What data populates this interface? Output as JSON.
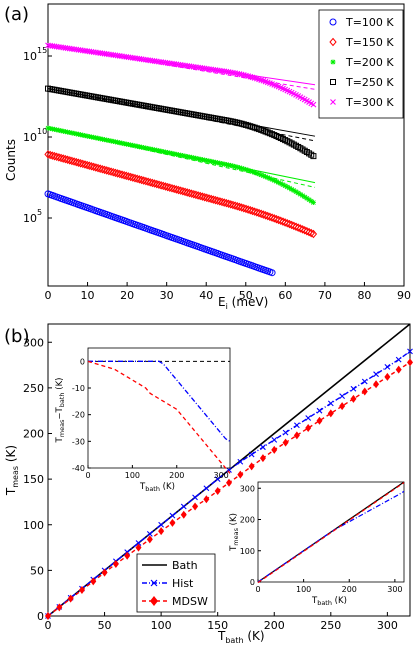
{
  "panel_a": {
    "title": "(a)",
    "xlabel": "E",
    "xlabel_sub": "i",
    "xlabel_unit": " (meV)",
    "ylabel": "Counts",
    "x_ticks": [
      "0",
      "10",
      "20",
      "30",
      "40",
      "50",
      "60",
      "70",
      "80",
      "90"
    ],
    "y_tick_base": [
      "10",
      "10",
      "10"
    ],
    "y_tick_exp": [
      "5",
      "10",
      "15"
    ],
    "legend": [
      "T=100 K",
      "T=150 K",
      "T=200 K",
      "T=250 K",
      "T=300 K"
    ]
  },
  "panel_b": {
    "title": "(b)",
    "xlabel": "T",
    "xlabel_sub": "bath",
    "xlabel_unit": " (K)",
    "ylabel": "T",
    "ylabel_sub": "meas",
    "ylabel_unit": " (K)",
    "x_ticks": [
      "0",
      "50",
      "100",
      "150",
      "200",
      "250",
      "300"
    ],
    "y_ticks": [
      "0",
      "50",
      "100",
      "150",
      "200",
      "250",
      "300"
    ],
    "legend": [
      "Bath",
      "Hist",
      "MDSW"
    ],
    "inset1": {
      "xlabel": "T",
      "xlabel_sub": "bath",
      "xlabel_unit": " (K)",
      "ylabel": "T",
      "ylabel_sub": "meas",
      "ylabel_mid": "−T",
      "ylabel_sub2": "bath",
      "ylabel_unit": " (K)",
      "x_ticks": [
        "0",
        "100",
        "200",
        "300"
      ],
      "y_ticks": [
        "0",
        "-10",
        "-20",
        "-30",
        "-40"
      ]
    },
    "inset2": {
      "xlabel": "T",
      "xlabel_sub": "bath",
      "xlabel_unit": " (K)",
      "ylabel": "T",
      "ylabel_sub": "meas",
      "ylabel_unit": " (K)",
      "x_ticks": [
        "0",
        "100",
        "200",
        "300"
      ],
      "y_ticks": [
        "0",
        "100",
        "200",
        "300"
      ]
    }
  },
  "colors": {
    "T100": "#0000ff",
    "T150": "#ff0000",
    "T200": "#00ee00",
    "T250": "#000000",
    "T300": "#ff00ff",
    "bath": "#000000",
    "hist": "#0000ff",
    "mdsw": "#ff0000"
  },
  "chart_data": [
    {
      "type": "scatter",
      "xlim": [
        0,
        90
      ],
      "ylim_log10": [
        2,
        17
      ],
      "yscale": "log",
      "legend_position": "top-right",
      "series": [
        {
          "name": "T=100 K",
          "marker": "circle",
          "x_max": 57,
          "log10_start": 6.9,
          "slope_per_meV": -0.074
        },
        {
          "name": "T=150 K",
          "marker": "diamond",
          "x_max": 67.5,
          "log10_start": 9.0,
          "slope_per_meV": -0.0575
        },
        {
          "name": "T=200 K",
          "marker": "star",
          "x_max": 67.5,
          "log10_start": 10.4,
          "slope_per_meV": -0.043
        },
        {
          "name": "T=250 K",
          "marker": "square",
          "x_max": 67.5,
          "log10_start": 12.5,
          "slope_per_meV": -0.0375
        },
        {
          "name": "T=300 K",
          "marker": "x",
          "x_max": 67.5,
          "log10_start": 14.8,
          "slope_per_meV": -0.031
        }
      ]
    },
    {
      "type": "line",
      "xlim": [
        0,
        320
      ],
      "ylim": [
        0,
        320
      ],
      "legend_position": "bottom-left",
      "series": [
        {
          "name": "Bath",
          "x": [
            0,
            320
          ],
          "y": [
            0,
            320
          ]
        },
        {
          "name": "Hist",
          "x": [
            0,
            10,
            20,
            30,
            40,
            50,
            60,
            70,
            80,
            90,
            100,
            110,
            120,
            130,
            140,
            150,
            160,
            170,
            180,
            190,
            200,
            210,
            220,
            230,
            240,
            250,
            260,
            270,
            280,
            290,
            300,
            310,
            320
          ],
          "y": [
            0,
            10,
            20,
            30,
            40,
            50,
            60,
            70,
            80,
            90,
            100,
            110,
            120,
            130,
            140,
            150,
            160,
            169,
            177,
            185,
            193,
            201,
            209,
            217,
            225,
            233,
            241,
            249,
            257,
            265,
            273,
            281,
            290
          ]
        },
        {
          "name": "MDSW",
          "x": [
            0,
            10,
            20,
            30,
            40,
            50,
            60,
            70,
            80,
            90,
            100,
            110,
            120,
            130,
            140,
            150,
            160,
            170,
            180,
            190,
            200,
            210,
            220,
            230,
            240,
            250,
            260,
            270,
            280,
            290,
            300,
            310,
            320
          ],
          "y": [
            0,
            9.5,
            19,
            28.5,
            38,
            47.5,
            57,
            66,
            75,
            84,
            93,
            102,
            111,
            120,
            128,
            137,
            146,
            155,
            164,
            173,
            182,
            190,
            198,
            206,
            214,
            222,
            230,
            238,
            246,
            254,
            262,
            270,
            278
          ]
        }
      ]
    }
  ]
}
